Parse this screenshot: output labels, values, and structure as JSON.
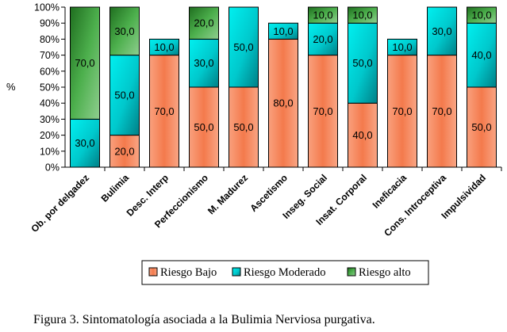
{
  "chart_data": {
    "type": "bar",
    "stacked": true,
    "ylabel": "%",
    "ylim": [
      0,
      100
    ],
    "y_ticks": [
      "0%",
      "10%",
      "20%",
      "30%",
      "40%",
      "50%",
      "60%",
      "70%",
      "80%",
      "90%",
      "100%"
    ],
    "categories": [
      "Ob. por delgadez",
      "Bulimia",
      "Desc. Interp",
      "Perfeccionismo",
      "M. Madurez",
      "Ascetismo",
      "Inseg. Social",
      "Insat. Corporal",
      "Ineficacia",
      "Cons. Introceptiva",
      "Impulsividad"
    ],
    "series": [
      {
        "name": "Riesgo Bajo",
        "color": "#f47a4c",
        "values": [
          null,
          20,
          70,
          50,
          50,
          80,
          70,
          40,
          70,
          70,
          50
        ],
        "labels": [
          "",
          "20,0",
          "70,0",
          "50,0",
          "50,0",
          "80,0",
          "70,0",
          "40,0",
          "70,0",
          "70,0",
          "50,0"
        ]
      },
      {
        "name": "Riesgo Moderado",
        "color": "#00d2d2",
        "values": [
          30,
          50,
          10,
          30,
          50,
          10,
          20,
          50,
          10,
          30,
          40
        ],
        "labels": [
          "30,0",
          "50,0",
          "10,0",
          "30,0",
          "50,0",
          "10,0",
          "20,0",
          "50,0",
          "10,0",
          "30,0",
          "40,0"
        ]
      },
      {
        "name": "Riesgo alto",
        "color": "#3fa13f",
        "values": [
          70,
          30,
          null,
          20,
          null,
          null,
          10,
          10,
          null,
          null,
          10
        ],
        "labels": [
          "70,0",
          "30,0",
          "",
          "20,0",
          "",
          "",
          "10,0",
          "10,0",
          "",
          "",
          "10,0"
        ]
      }
    ],
    "legend_position": "bottom",
    "grid": false
  },
  "caption": "Figura 3. Sintomatología asociada a la Bulimia Nerviosa purgativa."
}
